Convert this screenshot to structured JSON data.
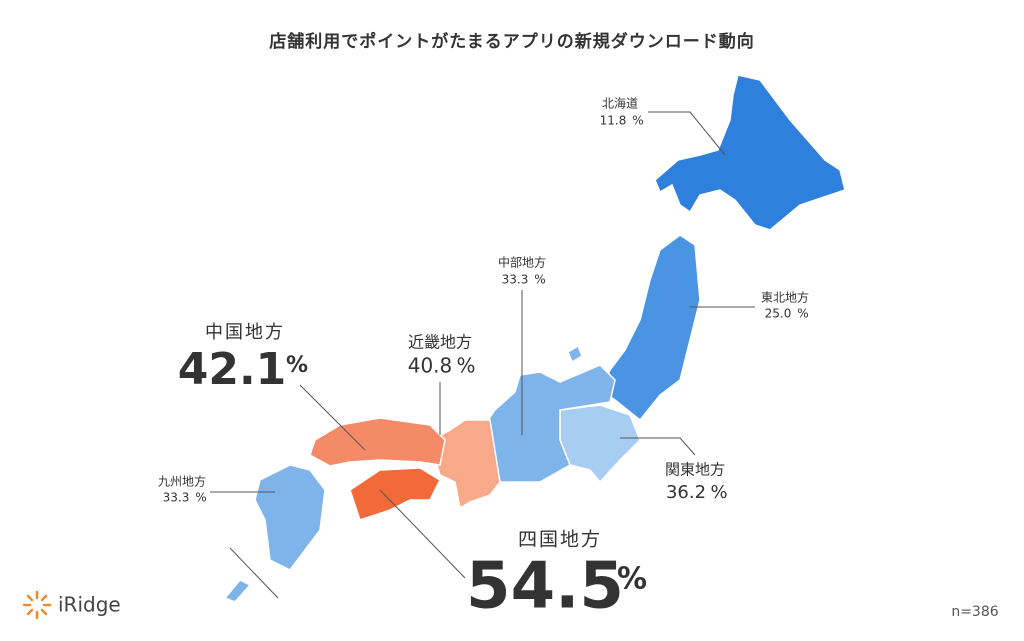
{
  "title": "店舗利用でポイントがたまるアプリの新規ダウンロード動向",
  "regions": [
    {
      "name": "北海道",
      "value": "11.8",
      "unit": "%"
    },
    {
      "name": "東北地方",
      "value": "25.0",
      "unit": "%"
    },
    {
      "name": "関東地方",
      "value": "36.2",
      "unit": "%"
    },
    {
      "name": "中部地方",
      "value": "33.3",
      "unit": "%"
    },
    {
      "name": "近畿地方",
      "value": "40.8",
      "unit": "%"
    },
    {
      "name": "中国地方",
      "value": "42.1",
      "unit": "%"
    },
    {
      "name": "四国地方",
      "value": "54.5",
      "unit": "%"
    },
    {
      "name": "九州地方",
      "value": "33.3",
      "unit": "%"
    }
  ],
  "sample": "n=386",
  "logo": "iRidge"
}
